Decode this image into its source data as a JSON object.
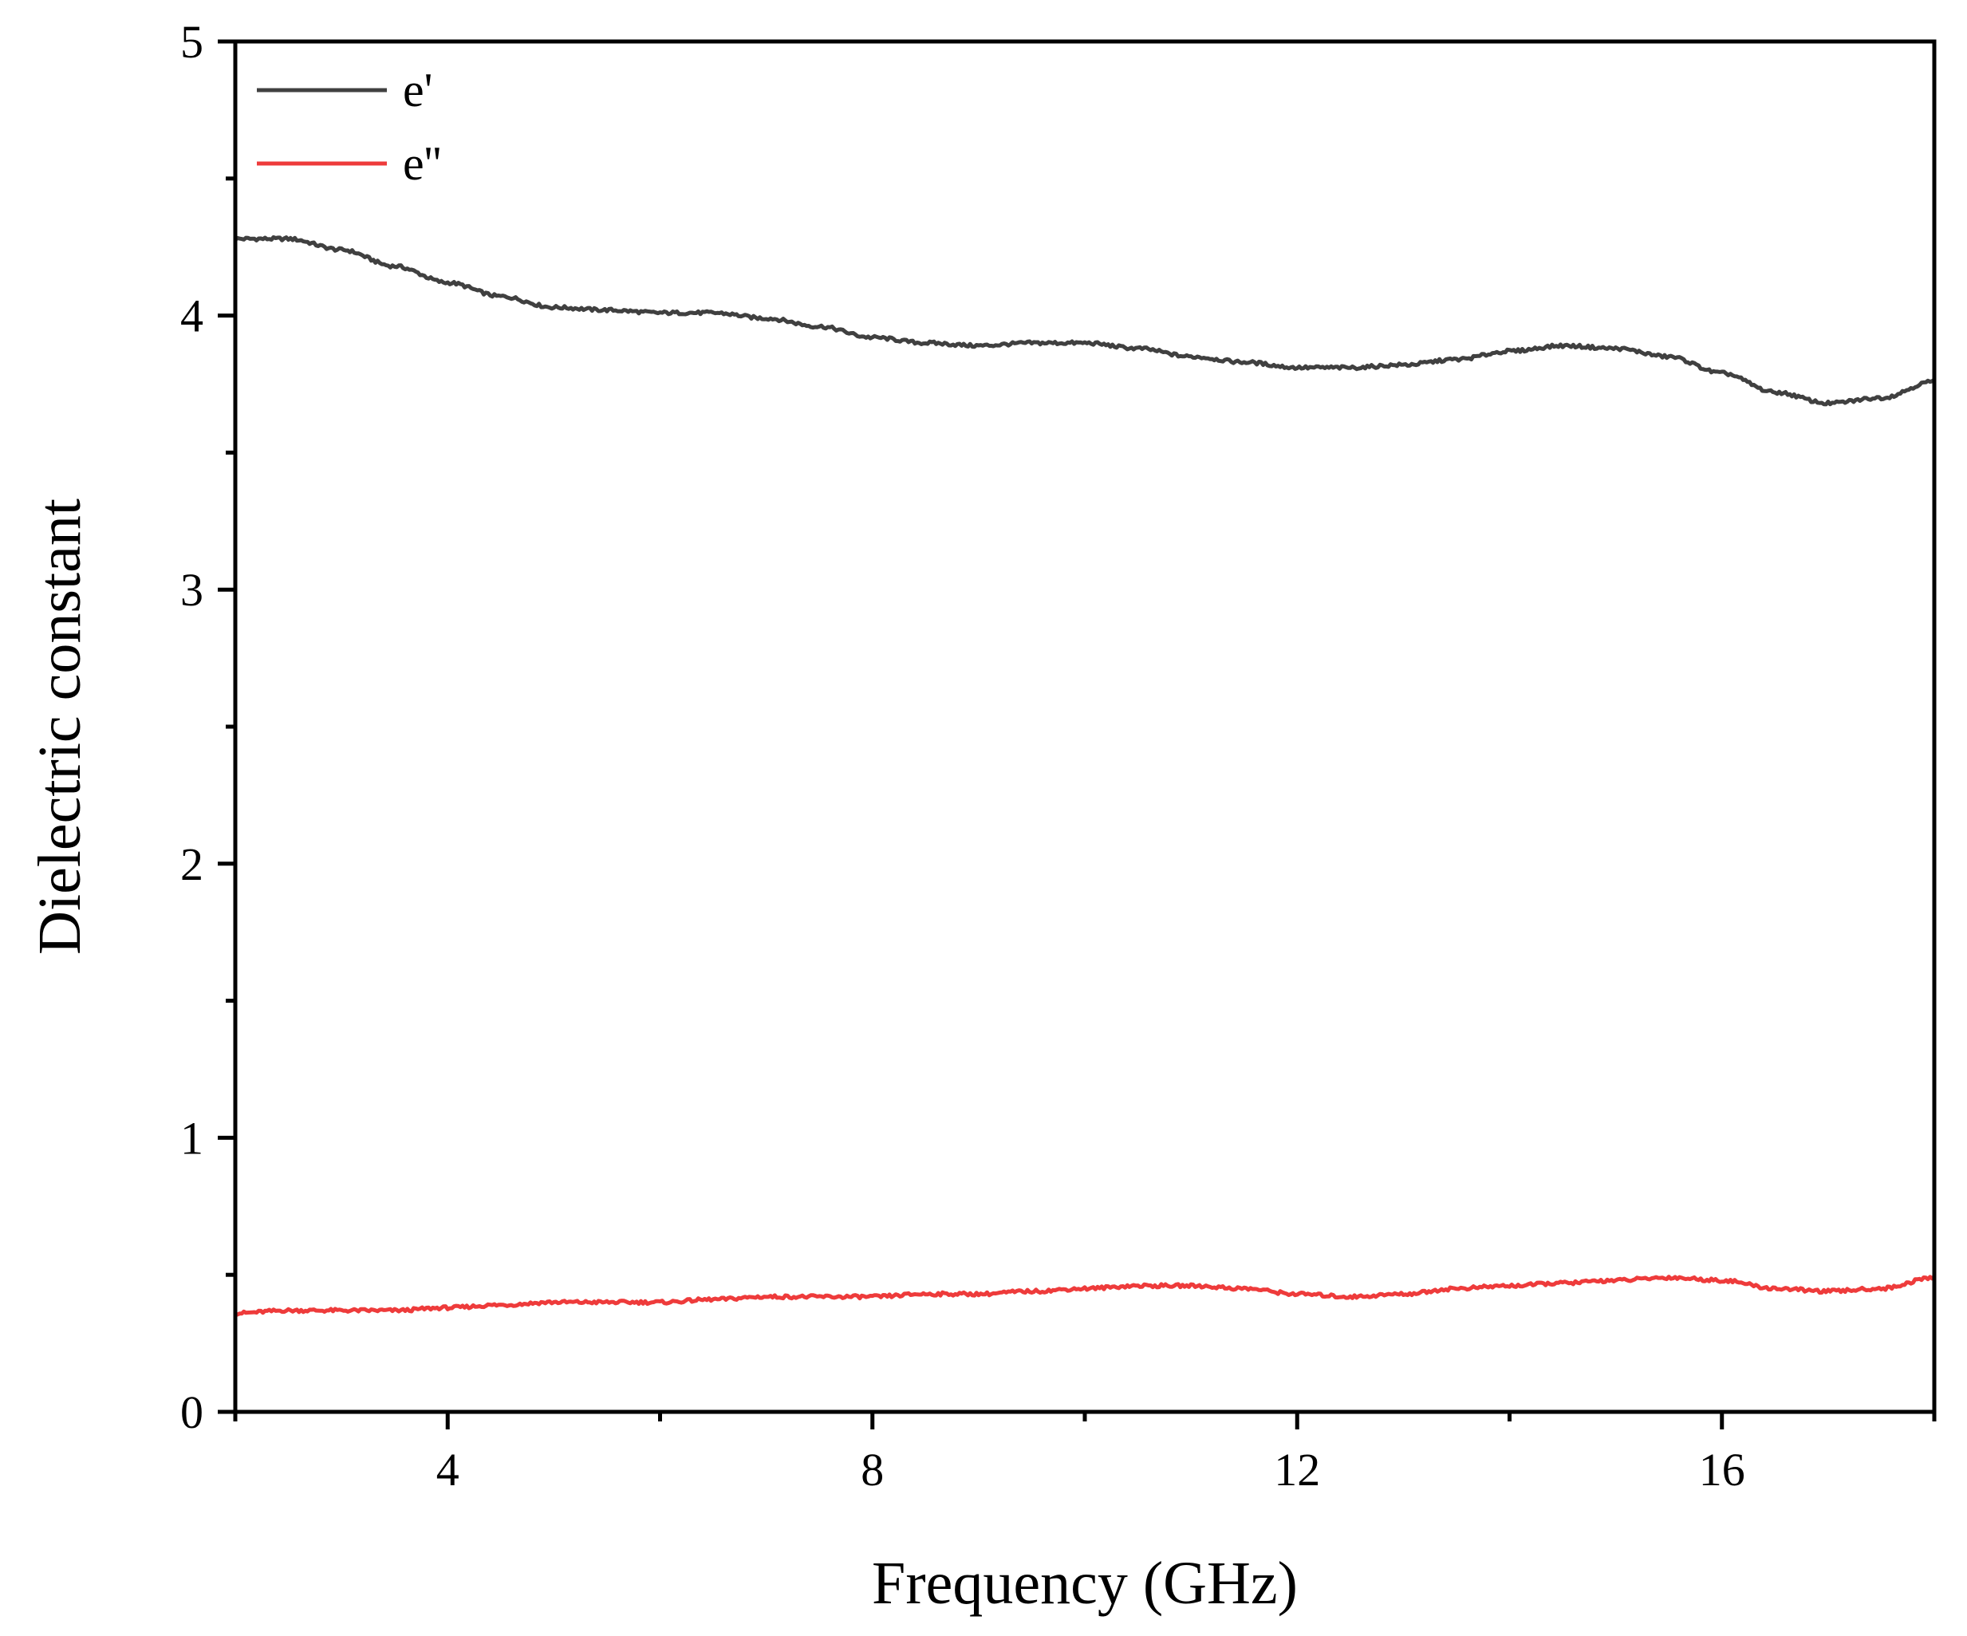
{
  "chart_data": {
    "type": "line",
    "title": "",
    "xlabel": "Frequency (GHz)",
    "ylabel": "Dielectric constant",
    "xlim": [
      2,
      18
    ],
    "ylim": [
      0,
      5
    ],
    "x_major_ticks": [
      4,
      8,
      12,
      16
    ],
    "x_minor_ticks": [
      2,
      6,
      10,
      14,
      18
    ],
    "y_major_ticks": [
      0,
      1,
      2,
      3,
      4,
      5
    ],
    "y_minor_ticks": [
      0.5,
      1.5,
      2.5,
      3.5,
      4.5
    ],
    "x_tick_labels": [
      "4",
      "8",
      "12",
      "16"
    ],
    "y_tick_labels": [
      "0",
      "1",
      "2",
      "3",
      "4",
      "5"
    ],
    "grid": false,
    "legend_position": "top-left",
    "x": [
      2.0,
      2.5,
      3.0,
      3.5,
      4.0,
      4.5,
      5.0,
      5.5,
      6.0,
      6.5,
      7.0,
      7.5,
      8.0,
      8.5,
      9.0,
      9.5,
      10.0,
      10.5,
      11.0,
      11.5,
      12.0,
      12.5,
      13.0,
      13.5,
      14.0,
      14.5,
      15.0,
      15.5,
      16.0,
      16.5,
      17.0,
      17.5,
      18.0
    ],
    "series": [
      {
        "name": "e'",
        "color": "#404040",
        "values": [
          4.28,
          4.28,
          4.24,
          4.18,
          4.12,
          4.07,
          4.03,
          4.02,
          4.01,
          4.01,
          3.99,
          3.96,
          3.92,
          3.9,
          3.89,
          3.9,
          3.9,
          3.88,
          3.85,
          3.83,
          3.81,
          3.81,
          3.82,
          3.84,
          3.87,
          3.89,
          3.88,
          3.85,
          3.79,
          3.72,
          3.68,
          3.7,
          3.76
        ]
      },
      {
        "name": "e''",
        "color": "#ee3b3b",
        "values": [
          0.36,
          0.37,
          0.37,
          0.37,
          0.38,
          0.39,
          0.4,
          0.4,
          0.4,
          0.41,
          0.42,
          0.42,
          0.42,
          0.43,
          0.43,
          0.44,
          0.45,
          0.46,
          0.46,
          0.45,
          0.43,
          0.42,
          0.43,
          0.45,
          0.46,
          0.47,
          0.48,
          0.49,
          0.48,
          0.45,
          0.44,
          0.45,
          0.49
        ]
      }
    ]
  }
}
